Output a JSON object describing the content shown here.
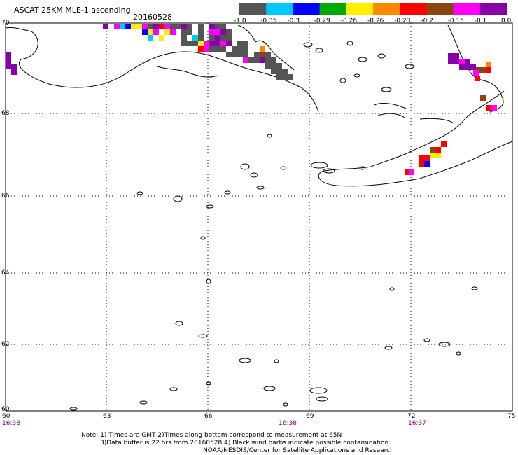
{
  "header": {
    "title": "ASCAT 25KM MLE-1 ascending",
    "date": "20160528"
  },
  "colorbar": {
    "colors": [
      "#555555",
      "#00c8ff",
      "#0000ff",
      "#00aa00",
      "#ffee00",
      "#ff8800",
      "#ff0000",
      "#8b4513",
      "#ff00ff",
      "#8800aa"
    ],
    "labels": [
      "-1.0",
      "-0.35",
      "-0.3",
      "-0.29",
      "-0.26",
      "-0.26",
      "-0.23",
      "-0.2",
      "-0.15",
      "-0.1",
      "0.0"
    ]
  },
  "lat_labels": [
    "70",
    "68",
    "66",
    "64",
    "62",
    "60"
  ],
  "lon_labels": [
    "60",
    "63",
    "66",
    "69",
    "72",
    "75"
  ],
  "time_labels": [
    "16:38",
    "16:38",
    "16:37"
  ],
  "notes": {
    "line1": "Note: 1) Times are GMT 2)Times along bottom correspond to measurement at 65N",
    "line2": "3)Data buffer is 22 hrs from 20160528 4) Black wind barbs indicate possible contamination",
    "line3": "NOAA/NESDIS/Center for Satellite Applications and Research"
  },
  "icons": {
    "coastline": "coastline-map",
    "data_cells": "scatterometer-pixels"
  }
}
